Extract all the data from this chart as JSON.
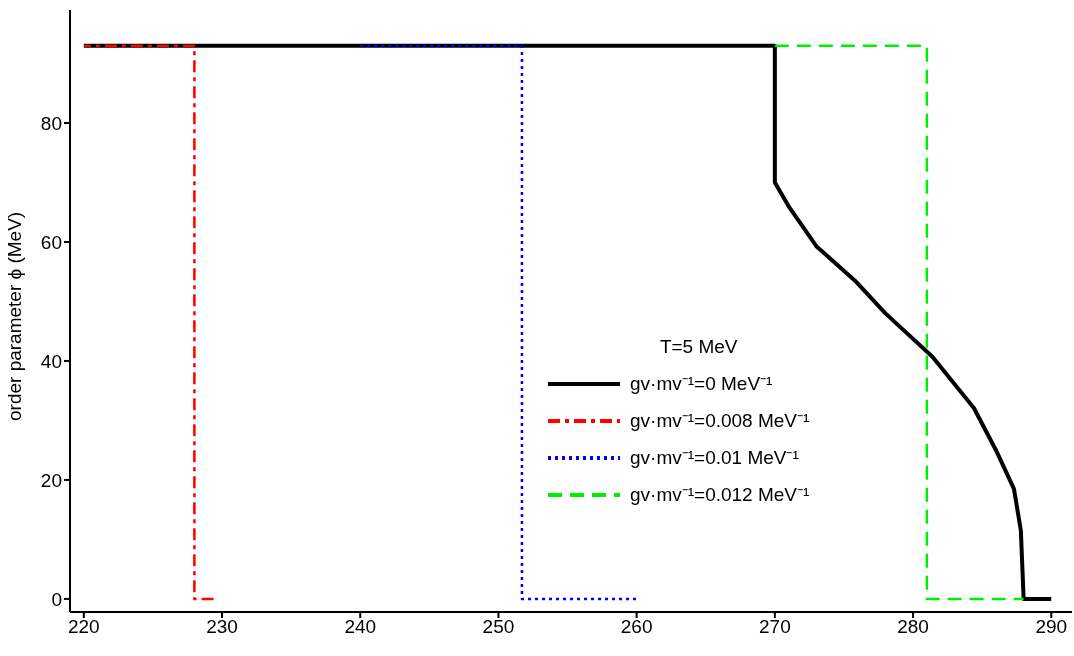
{
  "chart_data": {
    "type": "line",
    "ylabel": "order parameter ϕ (MeV)",
    "legend_title": "T=5 MeV",
    "legend": "bottom right",
    "marker": "none",
    "xlim": [
      219,
      291.5
    ],
    "ylim": [
      -2.2,
      99
    ],
    "xticks": [
      220,
      230,
      240,
      250,
      260,
      270,
      280,
      290
    ],
    "yticks": [
      0,
      20,
      40,
      60,
      80
    ],
    "series": [
      {
        "name": "gv·mv⁻¹=0 MeV⁻¹",
        "color": "#000000",
        "line_style": "solid",
        "x": [
          220,
          270,
          270,
          271,
          273,
          275.8,
          278,
          281.4,
          284.4,
          286,
          287.3,
          287.8,
          288,
          290
        ],
        "values": [
          93,
          93,
          70,
          66,
          59.3,
          53.5,
          48,
          40.7,
          32.1,
          25,
          18.5,
          11.5,
          0,
          0
        ]
      },
      {
        "name": "gv·mv⁻¹=0.008 MeV⁻¹",
        "color": "#ff0000",
        "line_style": "dashdot",
        "x": [
          220,
          228,
          228,
          229.7
        ],
        "values": [
          93,
          93,
          0,
          0
        ]
      },
      {
        "name": "gv·mv⁻¹=0.01 MeV⁻¹",
        "color": "#0000ff",
        "line_style": "dotted",
        "x": [
          240,
          251.7,
          251.7,
          260
        ],
        "values": [
          93,
          93,
          0,
          0
        ]
      },
      {
        "name": "gv·mv⁻¹=0.012 MeV⁻¹",
        "color": "#00ee00",
        "line_style": "dashed",
        "x": [
          270,
          281,
          281,
          288
        ],
        "values": [
          93,
          93,
          0,
          0
        ]
      }
    ]
  }
}
